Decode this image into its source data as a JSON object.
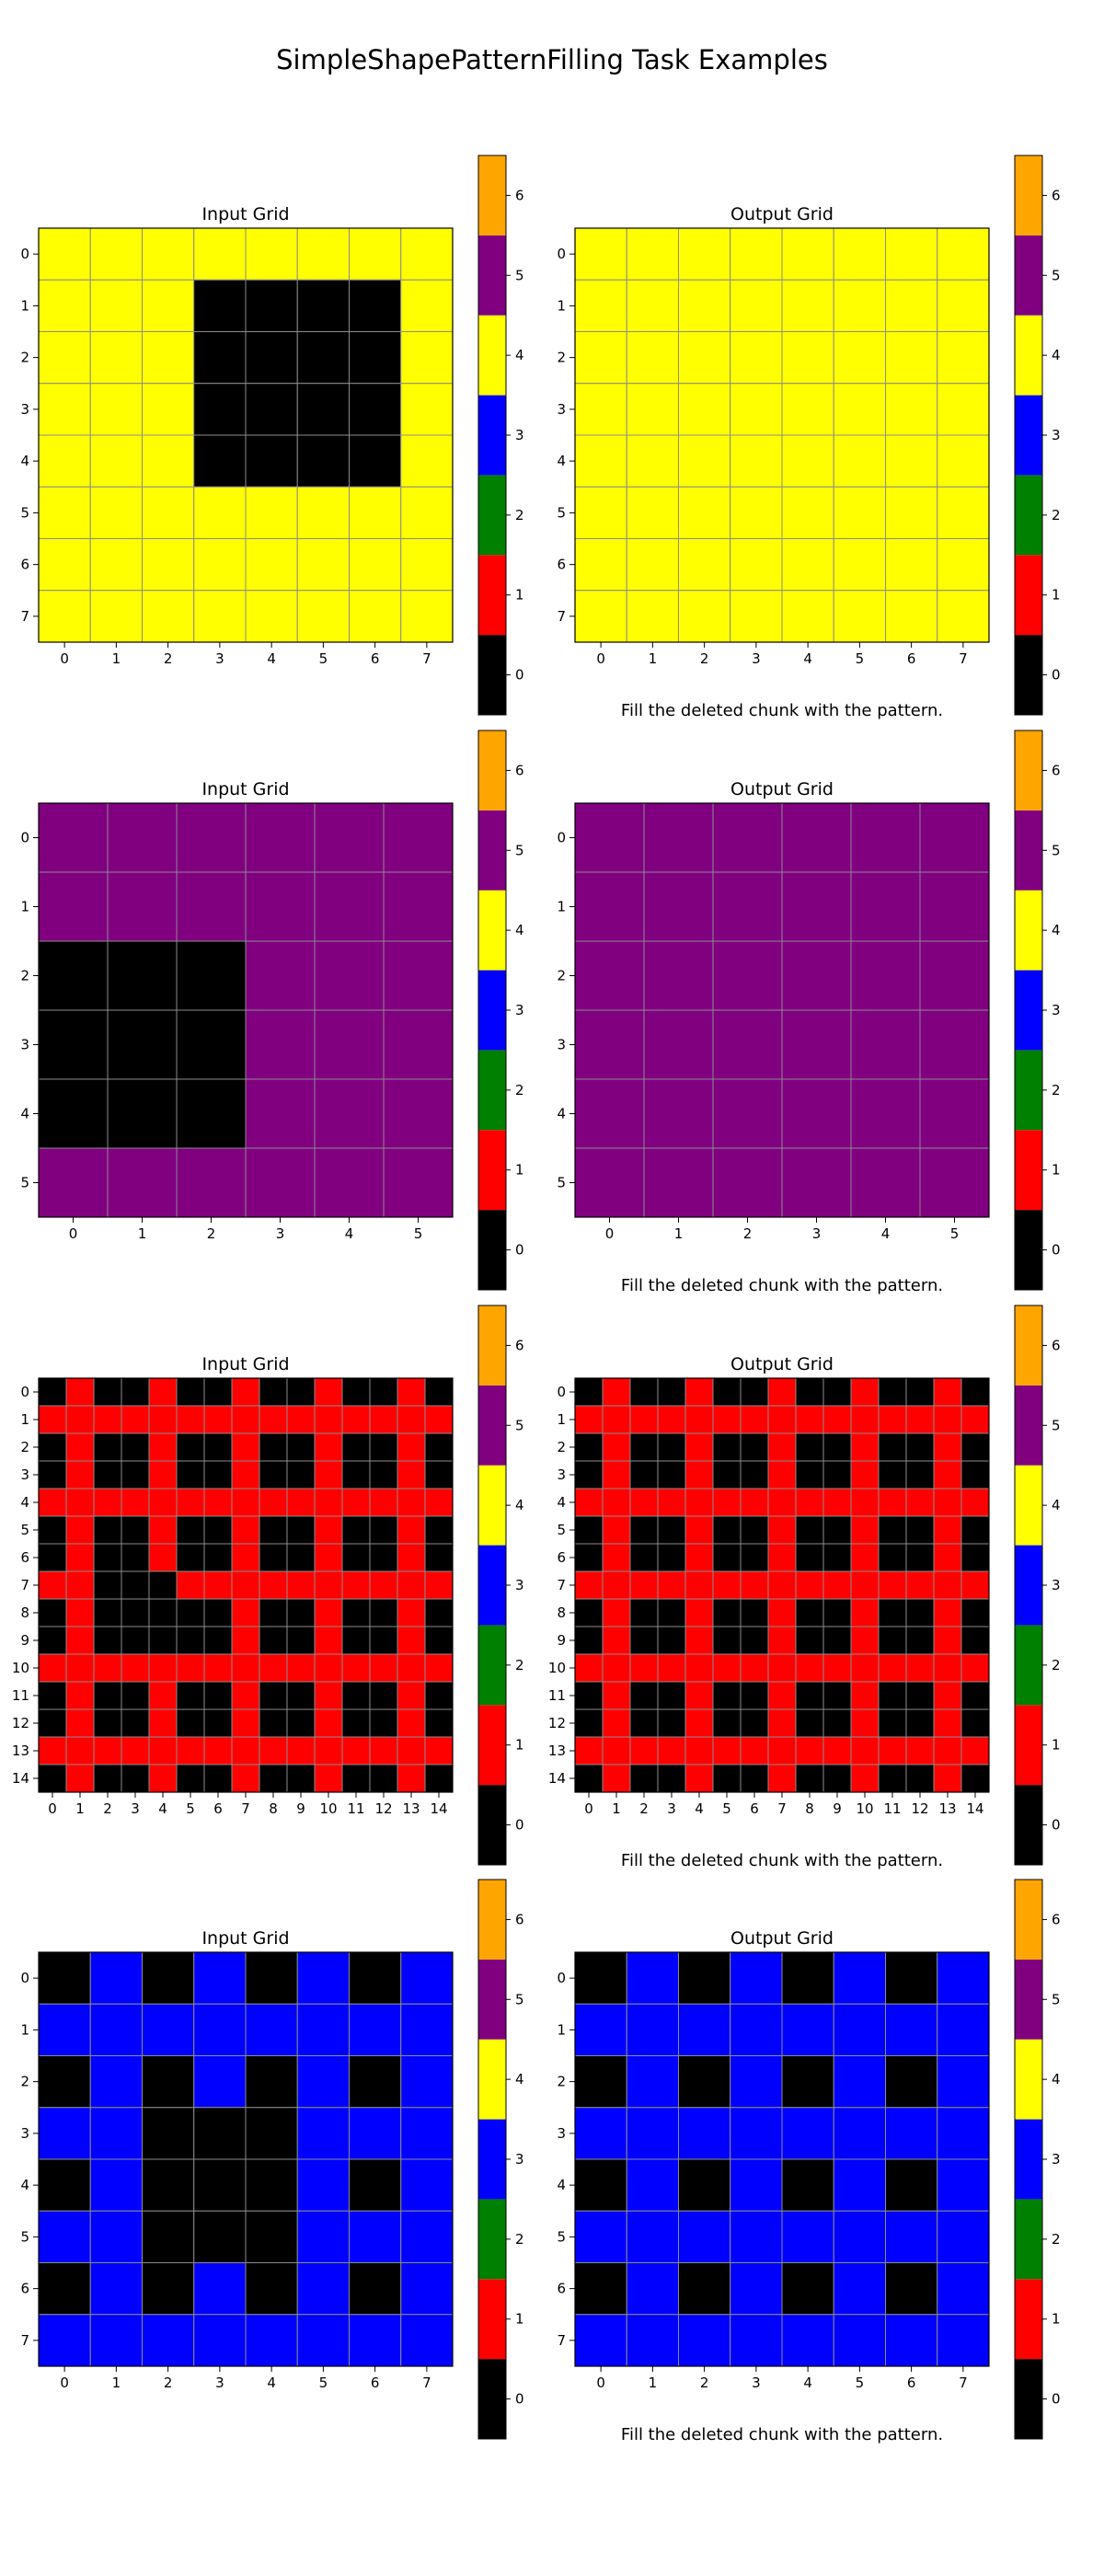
{
  "suptitle": "SimpleShapePatternFilling Task Examples",
  "colormap": {
    "0": "#000000",
    "1": "#ff0000",
    "2": "#008000",
    "3": "#0000ff",
    "4": "#ffff00",
    "5": "#800080",
    "6": "#ffa500"
  },
  "colorbar_ticks": [
    "0",
    "1",
    "2",
    "3",
    "4",
    "5",
    "6"
  ],
  "chart_data": [
    {
      "type": "heatmap",
      "title": "Input Grid",
      "caption": "",
      "x_ticks": [
        "0",
        "1",
        "2",
        "3",
        "4",
        "5",
        "6",
        "7"
      ],
      "y_ticks": [
        "0",
        "1",
        "2",
        "3",
        "4",
        "5",
        "6",
        "7"
      ],
      "grid": [
        [
          4,
          4,
          4,
          4,
          4,
          4,
          4,
          4
        ],
        [
          4,
          4,
          4,
          0,
          0,
          0,
          0,
          4
        ],
        [
          4,
          4,
          4,
          0,
          0,
          0,
          0,
          4
        ],
        [
          4,
          4,
          4,
          0,
          0,
          0,
          0,
          4
        ],
        [
          4,
          4,
          4,
          0,
          0,
          0,
          0,
          4
        ],
        [
          4,
          4,
          4,
          4,
          4,
          4,
          4,
          4
        ],
        [
          4,
          4,
          4,
          4,
          4,
          4,
          4,
          4
        ],
        [
          4,
          4,
          4,
          4,
          4,
          4,
          4,
          4
        ]
      ]
    },
    {
      "type": "heatmap",
      "title": "Output Grid",
      "caption": "Fill the deleted chunk with the pattern.",
      "x_ticks": [
        "0",
        "1",
        "2",
        "3",
        "4",
        "5",
        "6",
        "7"
      ],
      "y_ticks": [
        "0",
        "1",
        "2",
        "3",
        "4",
        "5",
        "6",
        "7"
      ],
      "grid": [
        [
          4,
          4,
          4,
          4,
          4,
          4,
          4,
          4
        ],
        [
          4,
          4,
          4,
          4,
          4,
          4,
          4,
          4
        ],
        [
          4,
          4,
          4,
          4,
          4,
          4,
          4,
          4
        ],
        [
          4,
          4,
          4,
          4,
          4,
          4,
          4,
          4
        ],
        [
          4,
          4,
          4,
          4,
          4,
          4,
          4,
          4
        ],
        [
          4,
          4,
          4,
          4,
          4,
          4,
          4,
          4
        ],
        [
          4,
          4,
          4,
          4,
          4,
          4,
          4,
          4
        ],
        [
          4,
          4,
          4,
          4,
          4,
          4,
          4,
          4
        ]
      ]
    },
    {
      "type": "heatmap",
      "title": "Input Grid",
      "caption": "",
      "x_ticks": [
        "0",
        "1",
        "2",
        "3",
        "4",
        "5"
      ],
      "y_ticks": [
        "0",
        "1",
        "2",
        "3",
        "4",
        "5"
      ],
      "grid": [
        [
          5,
          5,
          5,
          5,
          5,
          5
        ],
        [
          5,
          5,
          5,
          5,
          5,
          5
        ],
        [
          0,
          0,
          0,
          5,
          5,
          5
        ],
        [
          0,
          0,
          0,
          5,
          5,
          5
        ],
        [
          0,
          0,
          0,
          5,
          5,
          5
        ],
        [
          5,
          5,
          5,
          5,
          5,
          5
        ]
      ]
    },
    {
      "type": "heatmap",
      "title": "Output Grid",
      "caption": "Fill the deleted chunk with the pattern.",
      "x_ticks": [
        "0",
        "1",
        "2",
        "3",
        "4",
        "5"
      ],
      "y_ticks": [
        "0",
        "1",
        "2",
        "3",
        "4",
        "5"
      ],
      "grid": [
        [
          5,
          5,
          5,
          5,
          5,
          5
        ],
        [
          5,
          5,
          5,
          5,
          5,
          5
        ],
        [
          5,
          5,
          5,
          5,
          5,
          5
        ],
        [
          5,
          5,
          5,
          5,
          5,
          5
        ],
        [
          5,
          5,
          5,
          5,
          5,
          5
        ],
        [
          5,
          5,
          5,
          5,
          5,
          5
        ]
      ]
    },
    {
      "type": "heatmap",
      "title": "Input Grid",
      "caption": "",
      "x_ticks": [
        "0",
        "1",
        "2",
        "3",
        "4",
        "5",
        "6",
        "7",
        "8",
        "9",
        "10",
        "11",
        "12",
        "13",
        "14"
      ],
      "y_ticks": [
        "0",
        "1",
        "2",
        "3",
        "4",
        "5",
        "6",
        "7",
        "8",
        "9",
        "10",
        "11",
        "12",
        "13",
        "14"
      ],
      "grid": [
        [
          0,
          1,
          0,
          0,
          1,
          0,
          0,
          1,
          0,
          0,
          1,
          0,
          0,
          1,
          0
        ],
        [
          1,
          1,
          1,
          1,
          1,
          1,
          1,
          1,
          1,
          1,
          1,
          1,
          1,
          1,
          1
        ],
        [
          0,
          1,
          0,
          0,
          1,
          0,
          0,
          1,
          0,
          0,
          1,
          0,
          0,
          1,
          0
        ],
        [
          0,
          1,
          0,
          0,
          1,
          0,
          0,
          1,
          0,
          0,
          1,
          0,
          0,
          1,
          0
        ],
        [
          1,
          1,
          1,
          1,
          1,
          1,
          1,
          1,
          1,
          1,
          1,
          1,
          1,
          1,
          1
        ],
        [
          0,
          1,
          0,
          0,
          1,
          0,
          0,
          1,
          0,
          0,
          1,
          0,
          0,
          1,
          0
        ],
        [
          0,
          1,
          0,
          0,
          1,
          0,
          0,
          1,
          0,
          0,
          1,
          0,
          0,
          1,
          0
        ],
        [
          1,
          1,
          0,
          0,
          0,
          1,
          1,
          1,
          1,
          1,
          1,
          1,
          1,
          1,
          1
        ],
        [
          0,
          1,
          0,
          0,
          0,
          0,
          0,
          1,
          0,
          0,
          1,
          0,
          0,
          1,
          0
        ],
        [
          0,
          1,
          0,
          0,
          0,
          0,
          0,
          1,
          0,
          0,
          1,
          0,
          0,
          1,
          0
        ],
        [
          1,
          1,
          1,
          1,
          1,
          1,
          1,
          1,
          1,
          1,
          1,
          1,
          1,
          1,
          1
        ],
        [
          0,
          1,
          0,
          0,
          1,
          0,
          0,
          1,
          0,
          0,
          1,
          0,
          0,
          1,
          0
        ],
        [
          0,
          1,
          0,
          0,
          1,
          0,
          0,
          1,
          0,
          0,
          1,
          0,
          0,
          1,
          0
        ],
        [
          1,
          1,
          1,
          1,
          1,
          1,
          1,
          1,
          1,
          1,
          1,
          1,
          1,
          1,
          1
        ],
        [
          0,
          1,
          0,
          0,
          1,
          0,
          0,
          1,
          0,
          0,
          1,
          0,
          0,
          1,
          0
        ]
      ]
    },
    {
      "type": "heatmap",
      "title": "Output Grid",
      "caption": "Fill the deleted chunk with the pattern.",
      "x_ticks": [
        "0",
        "1",
        "2",
        "3",
        "4",
        "5",
        "6",
        "7",
        "8",
        "9",
        "10",
        "11",
        "12",
        "13",
        "14"
      ],
      "y_ticks": [
        "0",
        "1",
        "2",
        "3",
        "4",
        "5",
        "6",
        "7",
        "8",
        "9",
        "10",
        "11",
        "12",
        "13",
        "14"
      ],
      "grid": [
        [
          0,
          1,
          0,
          0,
          1,
          0,
          0,
          1,
          0,
          0,
          1,
          0,
          0,
          1,
          0
        ],
        [
          1,
          1,
          1,
          1,
          1,
          1,
          1,
          1,
          1,
          1,
          1,
          1,
          1,
          1,
          1
        ],
        [
          0,
          1,
          0,
          0,
          1,
          0,
          0,
          1,
          0,
          0,
          1,
          0,
          0,
          1,
          0
        ],
        [
          0,
          1,
          0,
          0,
          1,
          0,
          0,
          1,
          0,
          0,
          1,
          0,
          0,
          1,
          0
        ],
        [
          1,
          1,
          1,
          1,
          1,
          1,
          1,
          1,
          1,
          1,
          1,
          1,
          1,
          1,
          1
        ],
        [
          0,
          1,
          0,
          0,
          1,
          0,
          0,
          1,
          0,
          0,
          1,
          0,
          0,
          1,
          0
        ],
        [
          0,
          1,
          0,
          0,
          1,
          0,
          0,
          1,
          0,
          0,
          1,
          0,
          0,
          1,
          0
        ],
        [
          1,
          1,
          1,
          1,
          1,
          1,
          1,
          1,
          1,
          1,
          1,
          1,
          1,
          1,
          1
        ],
        [
          0,
          1,
          0,
          0,
          1,
          0,
          0,
          1,
          0,
          0,
          1,
          0,
          0,
          1,
          0
        ],
        [
          0,
          1,
          0,
          0,
          1,
          0,
          0,
          1,
          0,
          0,
          1,
          0,
          0,
          1,
          0
        ],
        [
          1,
          1,
          1,
          1,
          1,
          1,
          1,
          1,
          1,
          1,
          1,
          1,
          1,
          1,
          1
        ],
        [
          0,
          1,
          0,
          0,
          1,
          0,
          0,
          1,
          0,
          0,
          1,
          0,
          0,
          1,
          0
        ],
        [
          0,
          1,
          0,
          0,
          1,
          0,
          0,
          1,
          0,
          0,
          1,
          0,
          0,
          1,
          0
        ],
        [
          1,
          1,
          1,
          1,
          1,
          1,
          1,
          1,
          1,
          1,
          1,
          1,
          1,
          1,
          1
        ],
        [
          0,
          1,
          0,
          0,
          1,
          0,
          0,
          1,
          0,
          0,
          1,
          0,
          0,
          1,
          0
        ]
      ]
    },
    {
      "type": "heatmap",
      "title": "Input Grid",
      "caption": "",
      "x_ticks": [
        "0",
        "1",
        "2",
        "3",
        "4",
        "5",
        "6",
        "7"
      ],
      "y_ticks": [
        "0",
        "1",
        "2",
        "3",
        "4",
        "5",
        "6",
        "7"
      ],
      "grid": [
        [
          0,
          3,
          0,
          3,
          0,
          3,
          0,
          3
        ],
        [
          3,
          3,
          3,
          3,
          3,
          3,
          3,
          3
        ],
        [
          0,
          3,
          0,
          3,
          0,
          3,
          0,
          3
        ],
        [
          3,
          3,
          0,
          0,
          0,
          3,
          3,
          3
        ],
        [
          0,
          3,
          0,
          0,
          0,
          3,
          0,
          3
        ],
        [
          3,
          3,
          0,
          0,
          0,
          3,
          3,
          3
        ],
        [
          0,
          3,
          0,
          3,
          0,
          3,
          0,
          3
        ],
        [
          3,
          3,
          3,
          3,
          3,
          3,
          3,
          3
        ]
      ]
    },
    {
      "type": "heatmap",
      "title": "Output Grid",
      "caption": "Fill the deleted chunk with the pattern.",
      "x_ticks": [
        "0",
        "1",
        "2",
        "3",
        "4",
        "5",
        "6",
        "7"
      ],
      "y_ticks": [
        "0",
        "1",
        "2",
        "3",
        "4",
        "5",
        "6",
        "7"
      ],
      "grid": [
        [
          0,
          3,
          0,
          3,
          0,
          3,
          0,
          3
        ],
        [
          3,
          3,
          3,
          3,
          3,
          3,
          3,
          3
        ],
        [
          0,
          3,
          0,
          3,
          0,
          3,
          0,
          3
        ],
        [
          3,
          3,
          3,
          3,
          3,
          3,
          3,
          3
        ],
        [
          0,
          3,
          0,
          3,
          0,
          3,
          0,
          3
        ],
        [
          3,
          3,
          3,
          3,
          3,
          3,
          3,
          3
        ],
        [
          0,
          3,
          0,
          3,
          0,
          3,
          0,
          3
        ],
        [
          3,
          3,
          3,
          3,
          3,
          3,
          3,
          3
        ]
      ]
    }
  ]
}
